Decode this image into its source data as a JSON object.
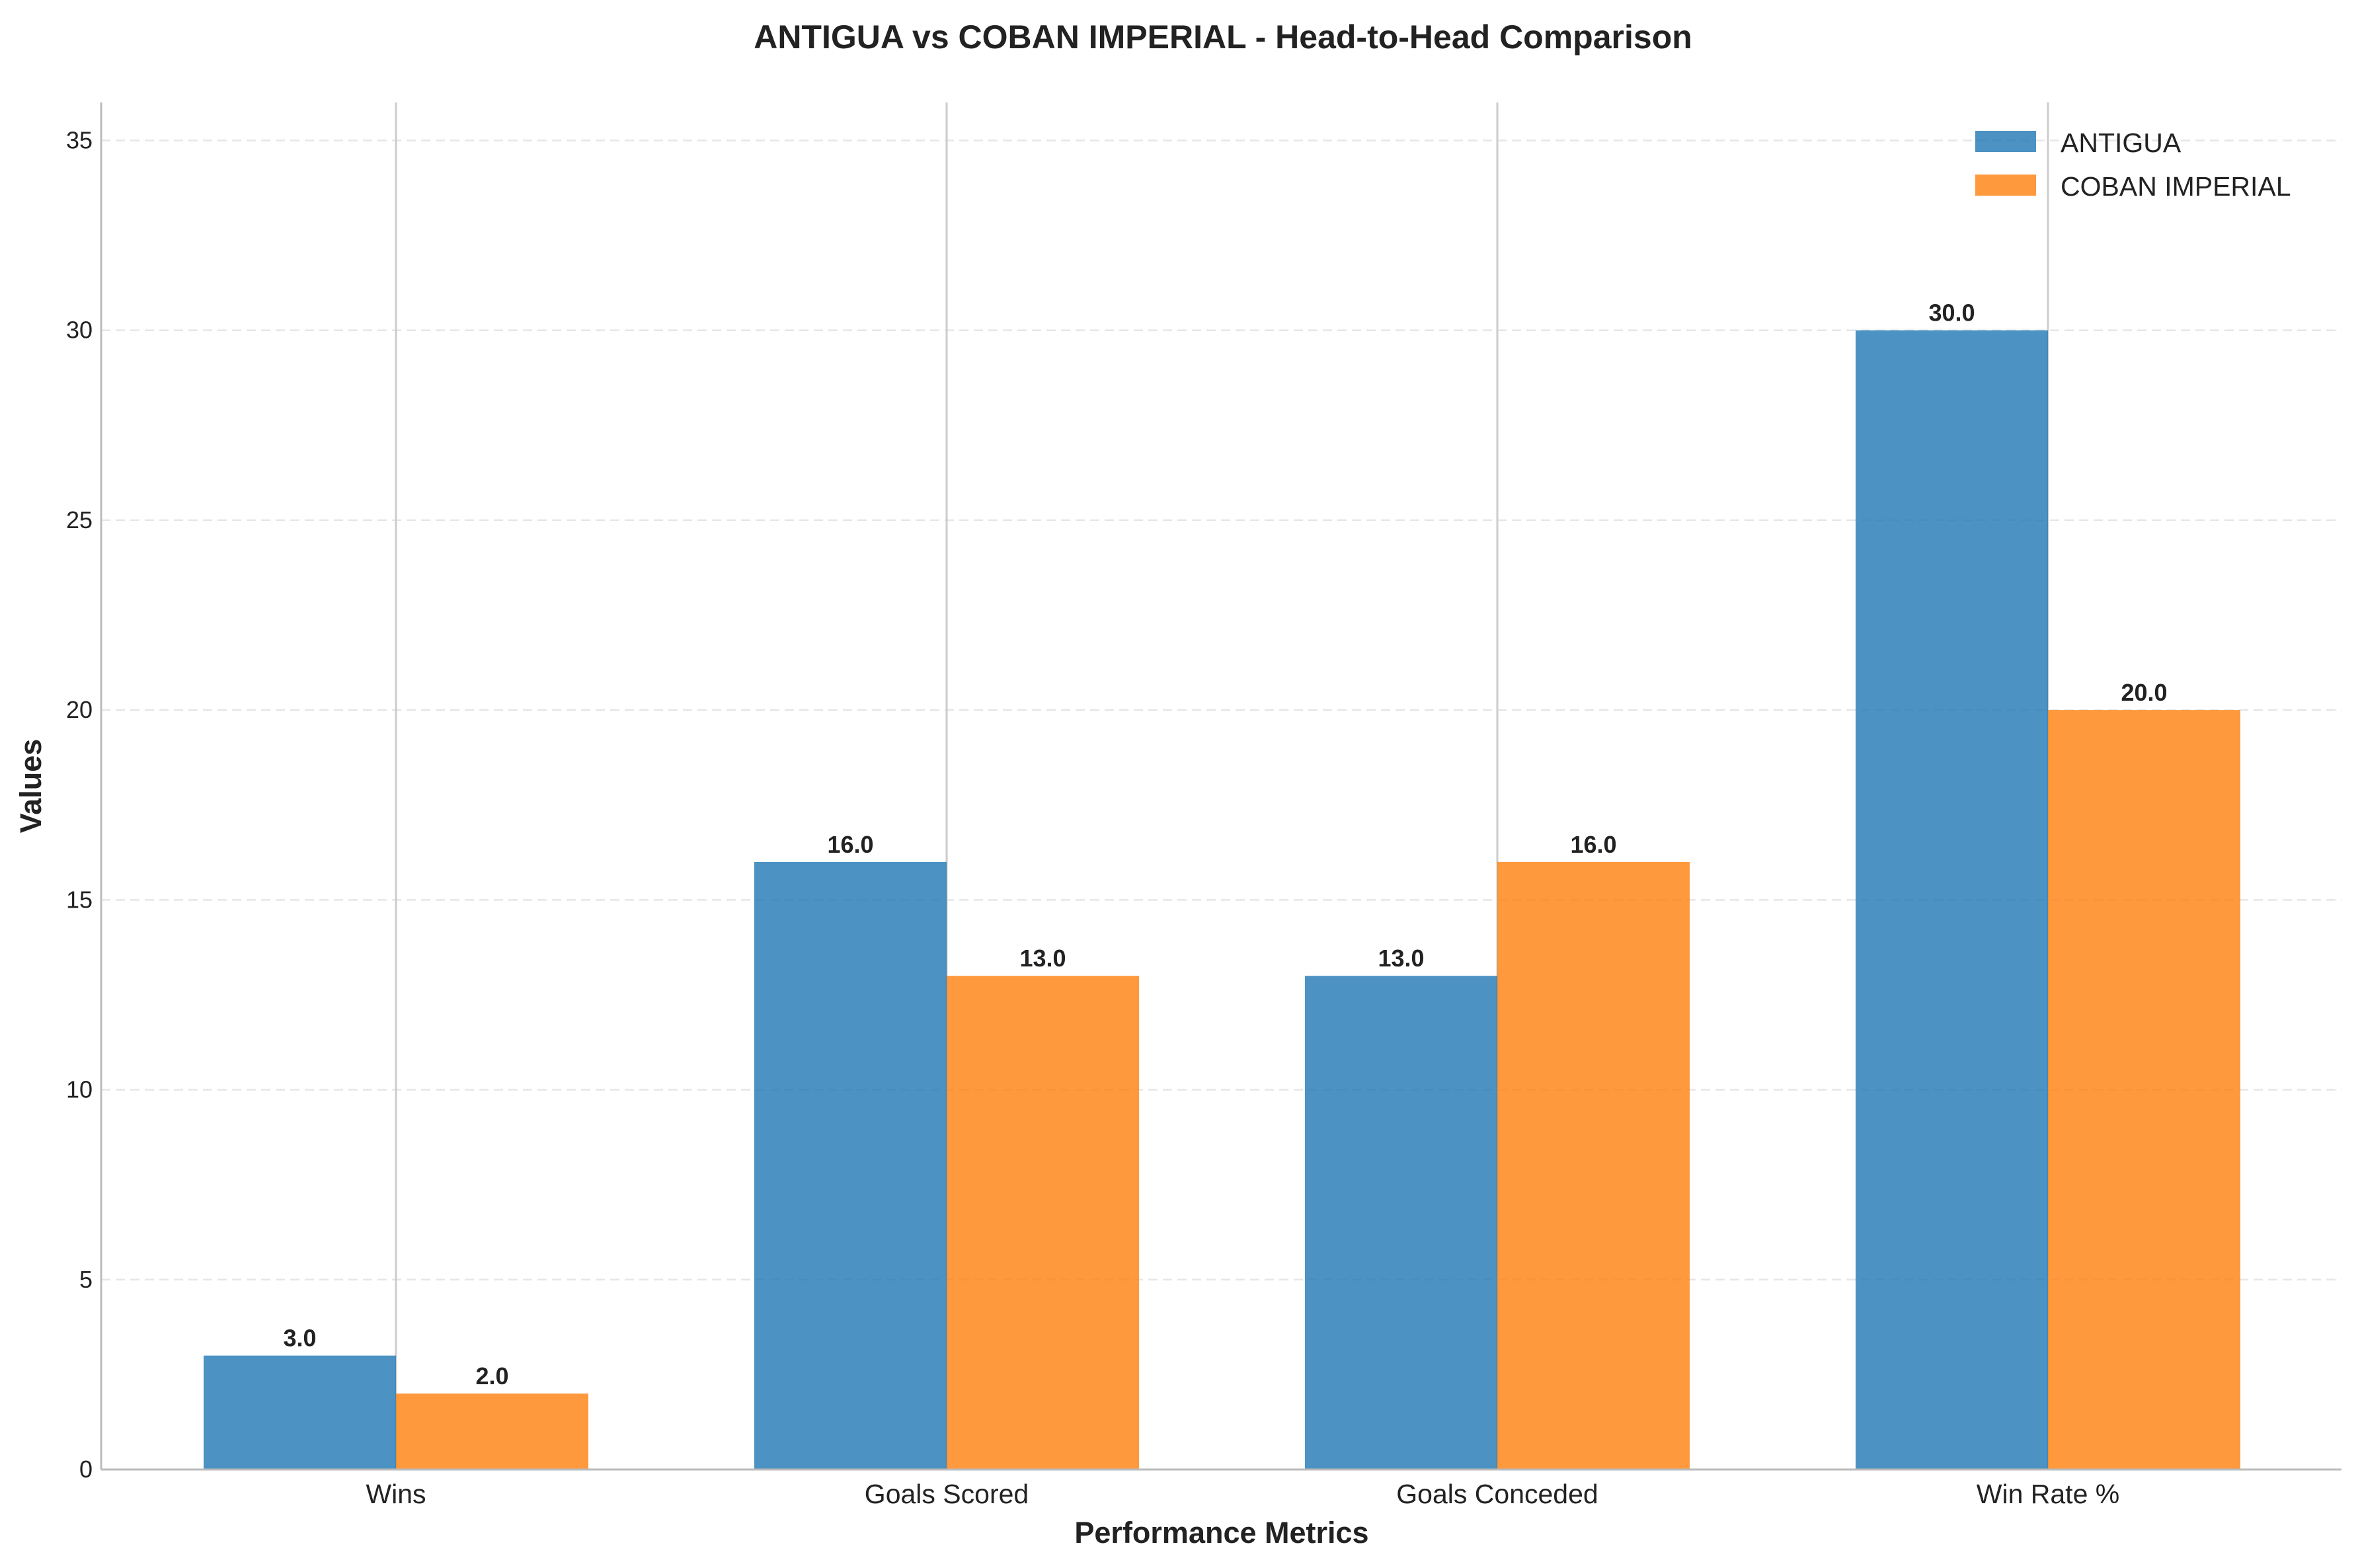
{
  "chart_data": {
    "type": "bar",
    "title": "ANTIGUA vs COBAN IMPERIAL - Head-to-Head Comparison",
    "xlabel": "Performance Metrics",
    "ylabel": "Values",
    "categories": [
      "Wins",
      "Goals Scored",
      "Goals Conceded",
      "Win Rate %"
    ],
    "series": [
      {
        "name": "ANTIGUA",
        "color": "#1f77b4",
        "values": [
          3.0,
          16.0,
          13.0,
          30.0
        ]
      },
      {
        "name": "COBAN IMPERIAL",
        "color": "#ff7f0e",
        "values": [
          2.0,
          13.0,
          16.0,
          20.0
        ]
      }
    ],
    "ylim": [
      0,
      36
    ],
    "yticks": [
      0,
      5,
      10,
      15,
      20,
      25,
      30,
      35
    ],
    "value_label_format": "0.0",
    "grid": "y-dashed",
    "legend_position": "top-right"
  }
}
